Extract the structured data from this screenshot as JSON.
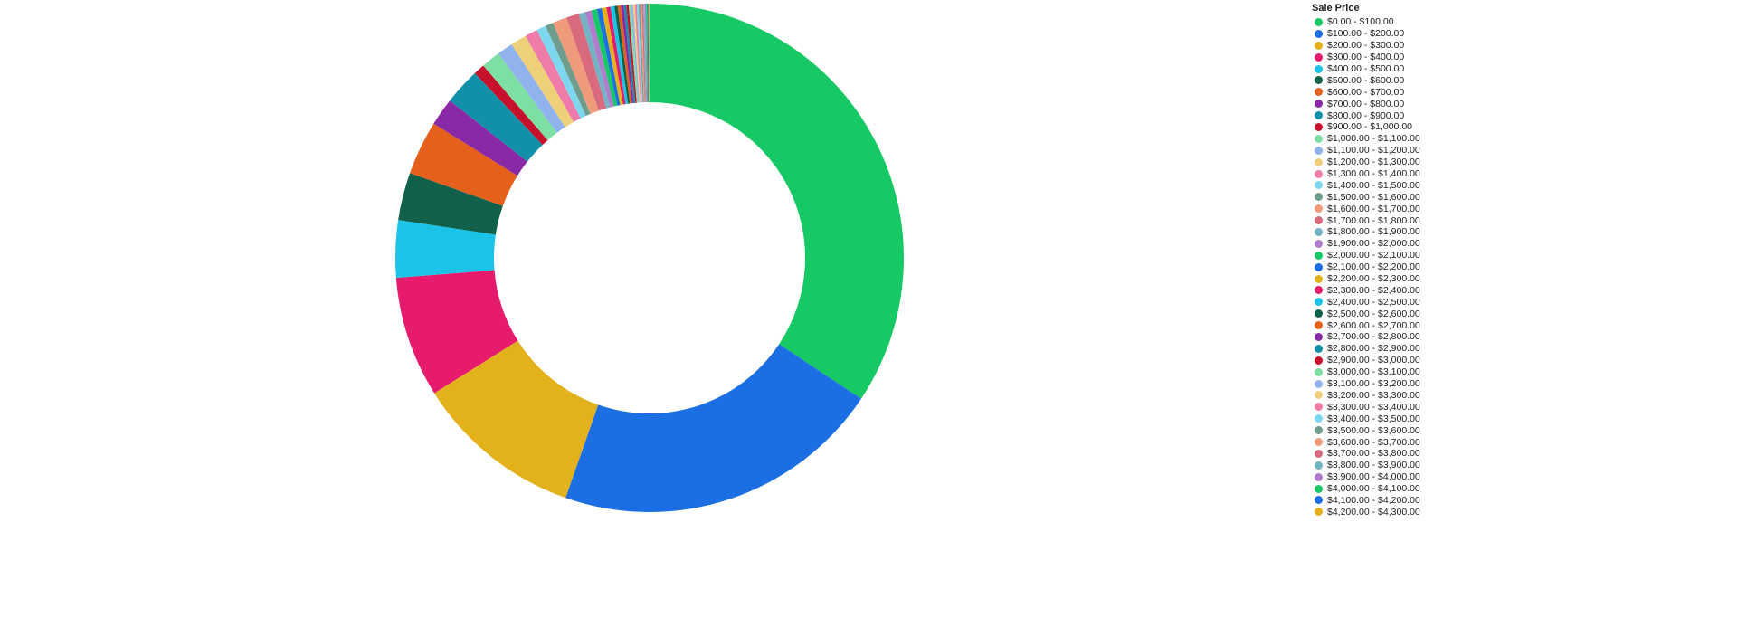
{
  "chart_data": {
    "type": "pie",
    "variant": "donut",
    "legend_title": "Sale Price",
    "legend_position": "right",
    "unit": "percent of total (estimated)",
    "categories": [
      "$0.00 - $100.00",
      "$100.00 - $200.00",
      "$200.00 - $300.00",
      "$300.00 - $400.00",
      "$400.00 - $500.00",
      "$500.00 - $600.00",
      "$600.00 - $700.00",
      "$700.00 - $800.00",
      "$800.00 - $900.00",
      "$900.00 - $1,000.00",
      "$1,000.00 - $1,100.00",
      "$1,100.00 - $1,200.00",
      "$1,200.00 - $1,300.00",
      "$1,300.00 - $1,400.00",
      "$1,400.00 - $1,500.00",
      "$1,500.00 - $1,600.00",
      "$1,600.00 - $1,700.00",
      "$1,700.00 - $1,800.00",
      "$1,800.00 - $1,900.00",
      "$1,900.00 - $2,000.00",
      "$2,000.00 - $2,100.00",
      "$2,100.00 - $2,200.00",
      "$2,200.00 - $2,300.00",
      "$2,300.00 - $2,400.00",
      "$2,400.00 - $2,500.00",
      "$2,500.00 - $2,600.00",
      "$2,600.00 - $2,700.00",
      "$2,700.00 - $2,800.00",
      "$2,800.00 - $2,900.00",
      "$2,900.00 - $3,000.00",
      "$3,000.00 - $3,100.00",
      "$3,100.00 - $3,200.00",
      "$3,200.00 - $3,300.00",
      "$3,300.00 - $3,400.00",
      "$3,400.00 - $3,500.00",
      "$3,500.00 - $3,600.00",
      "$3,600.00 - $3,700.00",
      "$3,700.00 - $3,800.00",
      "$3,800.00 - $3,900.00",
      "$3,900.00 - $4,000.00",
      "$4,000.00 - $4,100.00",
      "$4,100.00 - $4,200.00",
      "$4,200.00 - $4,300.00"
    ],
    "values": [
      34.0,
      20.8,
      10.6,
      7.6,
      3.6,
      3.0,
      3.4,
      1.75,
      2.3,
      0.7,
      1.2,
      1.0,
      1.0,
      0.8,
      0.6,
      0.5,
      0.9,
      0.8,
      0.4,
      0.4,
      0.35,
      0.3,
      0.3,
      0.25,
      0.25,
      0.2,
      0.2,
      0.18,
      0.16,
      0.15,
      0.14,
      0.13,
      0.12,
      0.12,
      0.11,
      0.1,
      0.1,
      0.09,
      0.09,
      0.08,
      0.08,
      0.07,
      0.07
    ],
    "colors": [
      "#17c964",
      "#1b6fe3",
      "#e3b11b",
      "#e61b6e",
      "#1bc3e6",
      "#11614a",
      "#e5601a",
      "#8a29a6",
      "#1290a9",
      "#c7102b",
      "#7ddfa3",
      "#90b3ee",
      "#eed07b",
      "#ef7ba9",
      "#7dd8ef",
      "#6f9c8c",
      "#ef9a7a",
      "#d96a7e",
      "#73b3c3",
      "#b07dcc"
    ]
  }
}
